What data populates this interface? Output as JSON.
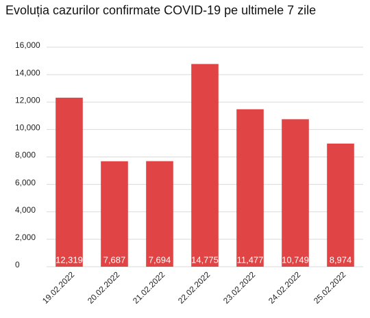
{
  "chart_data": {
    "type": "bar",
    "title": "Evoluția cazurilor confirmate COVID-19 pe ultimele 7 zile",
    "categories": [
      "19.02.2022",
      "20.02.2022",
      "21.02.2022",
      "22.02.2022",
      "23.02.2022",
      "24.02.2022",
      "25.02.2022"
    ],
    "values": [
      12319,
      7687,
      7694,
      14775,
      11477,
      10749,
      8974
    ],
    "value_labels": [
      "12,319",
      "7,687",
      "7,694",
      "14,775",
      "11,477",
      "10,749",
      "8,974"
    ],
    "color": "#e04444",
    "ylim": [
      0,
      16000
    ],
    "yticks": [
      0,
      {
        "value": 2000,
        "label": "2,000"
      },
      {
        "value": 4000,
        "label": "4,000"
      },
      {
        "value": 6000,
        "label": "6,000"
      },
      {
        "value": 8000,
        "label": "8,000"
      },
      {
        "value": 10000,
        "label": "10,000"
      },
      {
        "value": 12000,
        "label": "12,000"
      },
      {
        "value": 14000,
        "label": "14,000"
      },
      {
        "value": 16000,
        "label": "16,000"
      }
    ],
    "grid": true
  }
}
